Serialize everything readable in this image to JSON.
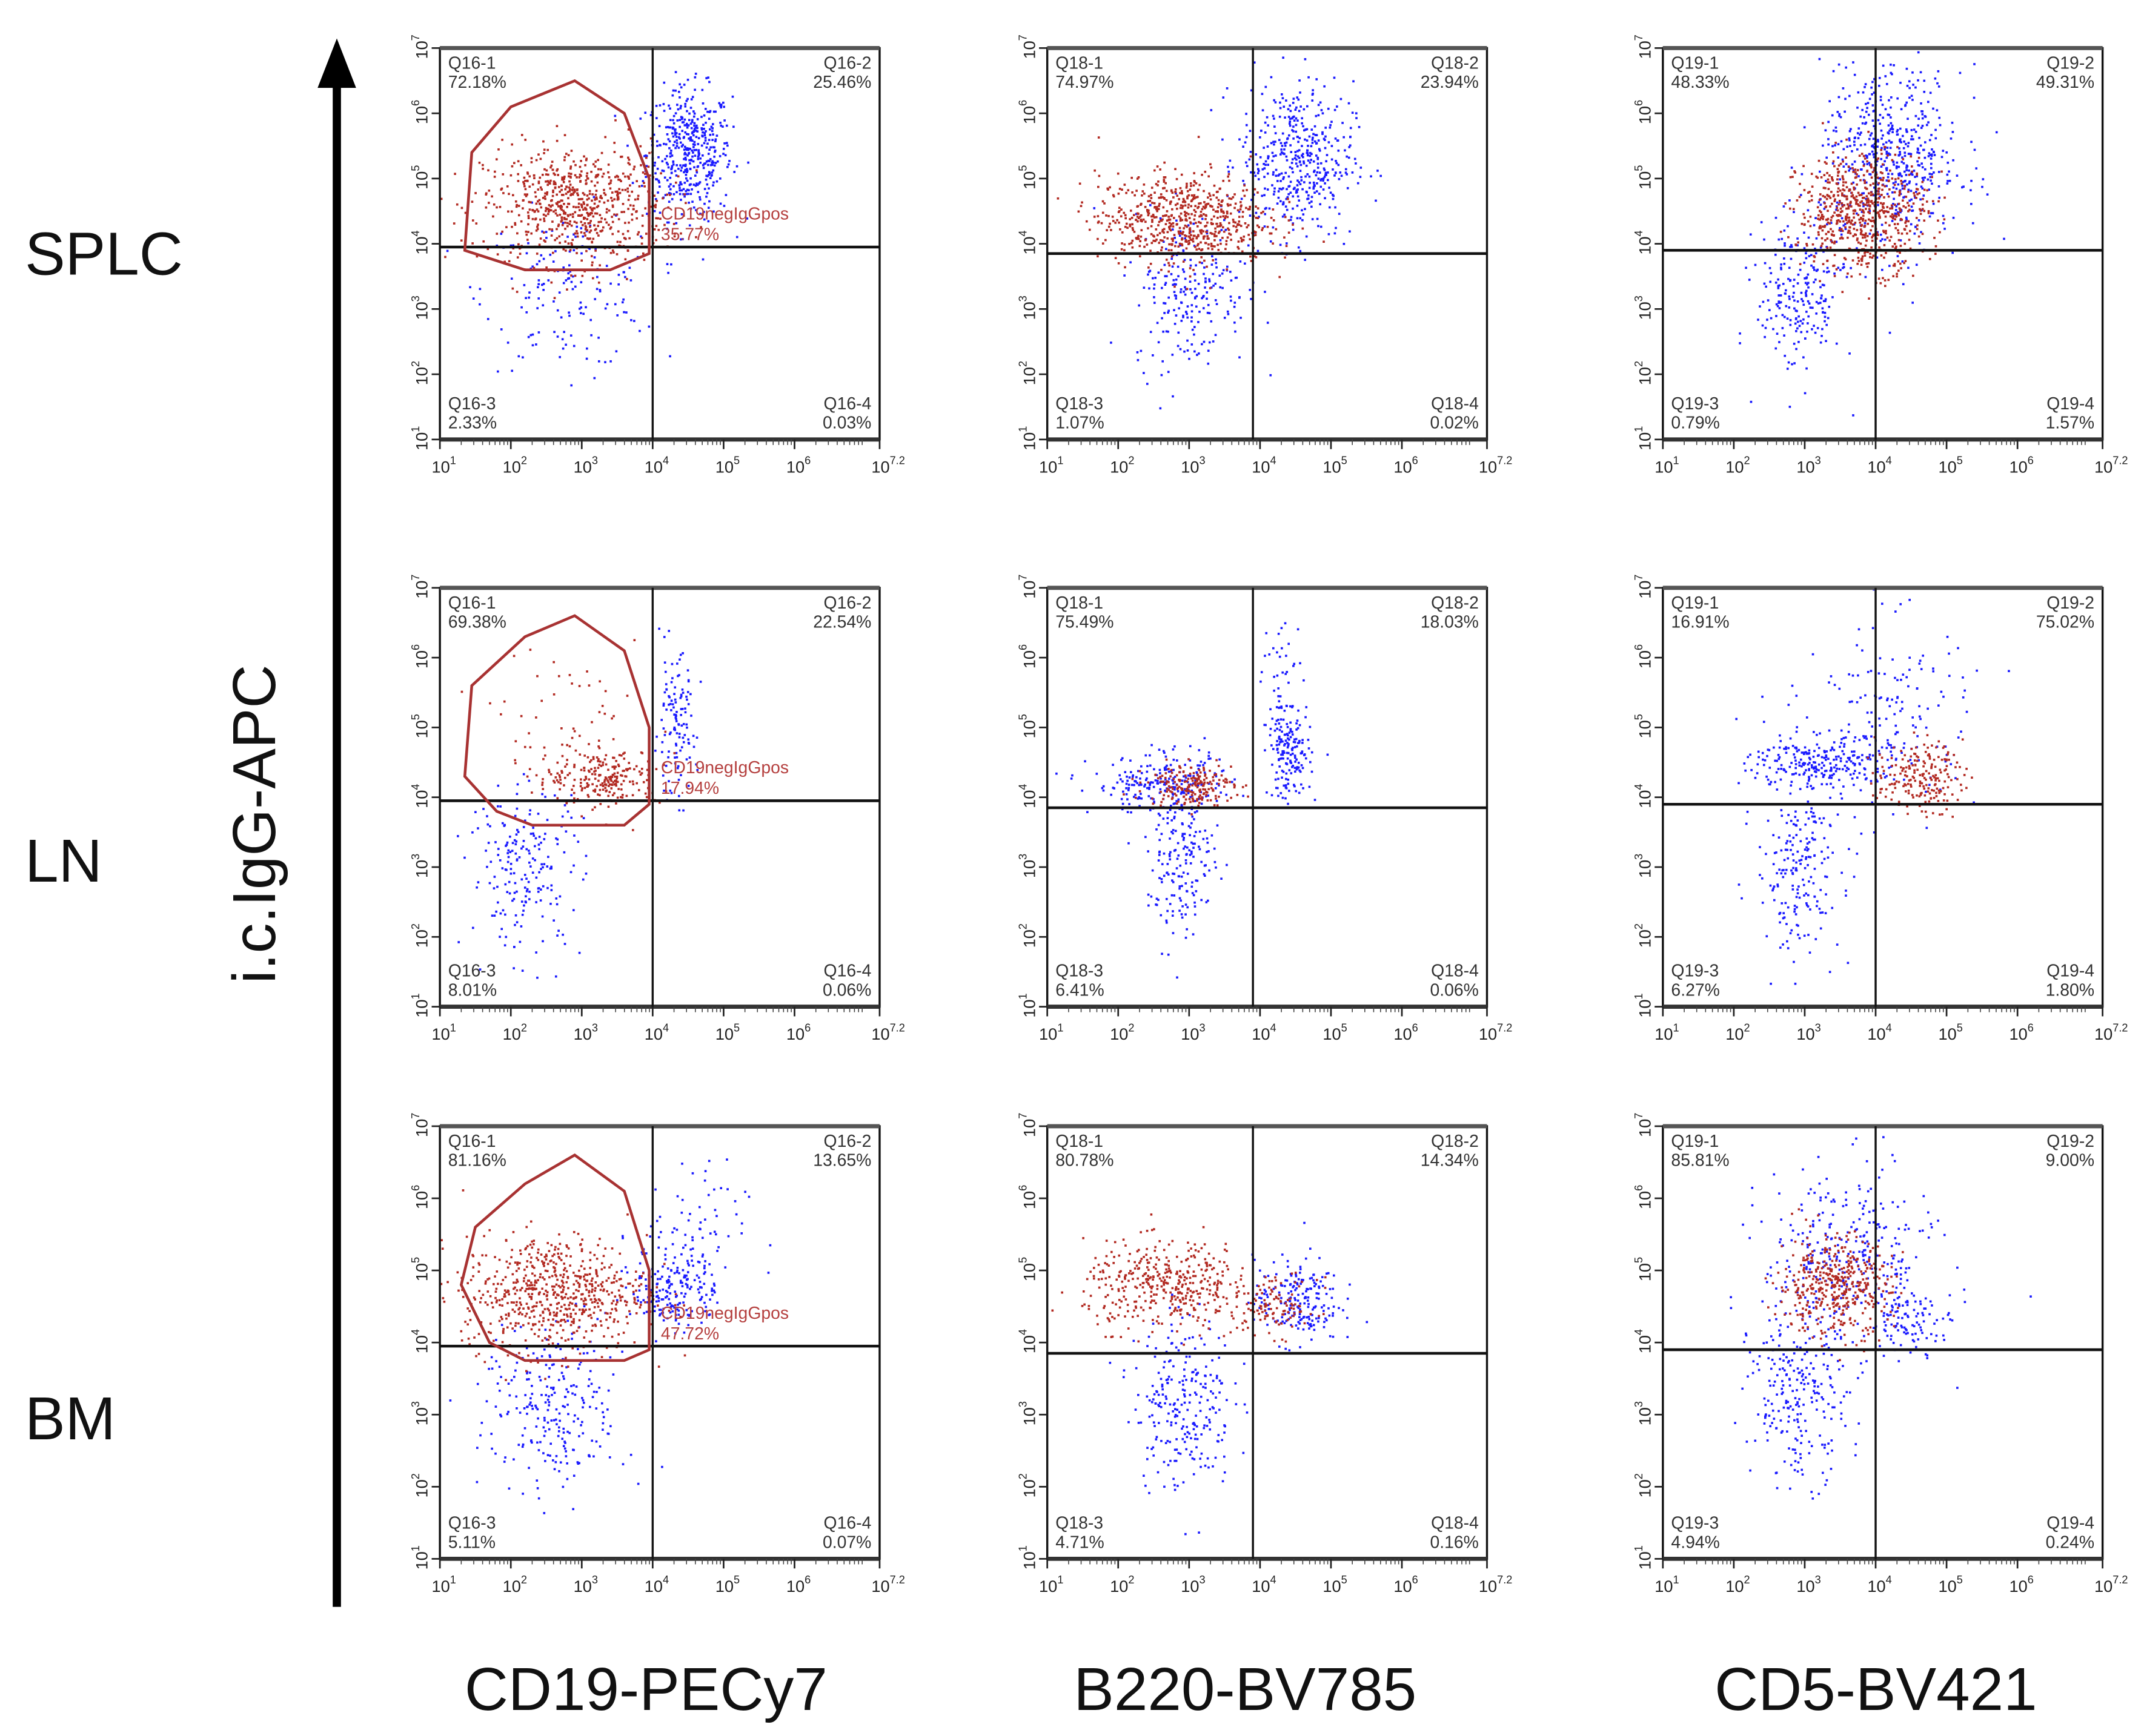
{
  "row_labels": [
    "SPLC",
    "LN",
    "BM"
  ],
  "y_axis_title": "i.c.IgG-APC",
  "column_labels": [
    "CD19-PECy7",
    "B220-BV785",
    "CD5-BV421"
  ],
  "colors": {
    "gated": "#b22a22",
    "ungated": "#1a1aff",
    "gate_outline": "#a83232",
    "axis": "#111111"
  },
  "chart_data": [
    {
      "type": "scatter",
      "row": 0,
      "col": 0,
      "xlabel": "CD19-PECy7",
      "ylabel": "i.c.IgG-APC",
      "x_tick_exponents": [
        "1",
        "2",
        "3",
        "4",
        "5",
        "6",
        "7.2"
      ],
      "y_tick_exponents": [
        "1",
        "2",
        "3",
        "4",
        "5",
        "6",
        "7"
      ],
      "xlim_log10": [
        1,
        7.2
      ],
      "ylim_log10": [
        1,
        7
      ],
      "x_gate_log10": 4.0,
      "y_gate_log10": 3.95,
      "quadrants": [
        {
          "name": "Q16-1",
          "pct": "72.18%"
        },
        {
          "name": "Q16-2",
          "pct": "25.46%"
        },
        {
          "name": "Q16-3",
          "pct": "2.33%"
        },
        {
          "name": "Q16-4",
          "pct": "0.03%"
        }
      ],
      "gate": {
        "label": "CD19negIgGpos",
        "pct": "35.77%",
        "polygon_log10": [
          [
            1.35,
            3.9
          ],
          [
            1.45,
            5.4
          ],
          [
            2.0,
            6.1
          ],
          [
            2.9,
            6.5
          ],
          [
            3.6,
            6.0
          ],
          [
            3.95,
            5.0
          ],
          [
            3.95,
            3.85
          ],
          [
            3.4,
            3.6
          ],
          [
            2.2,
            3.6
          ]
        ]
      },
      "populations": [
        {
          "c": "ungated",
          "x": 4.5,
          "y": 5.4,
          "sx": 0.3,
          "sy": 0.5,
          "n": 450
        },
        {
          "c": "gated",
          "x": 2.9,
          "y": 4.6,
          "sx": 0.65,
          "sy": 0.45,
          "n": 700
        },
        {
          "c": "ungated",
          "x": 2.8,
          "y": 3.3,
          "sx": 0.6,
          "sy": 0.6,
          "n": 160
        }
      ]
    },
    {
      "type": "scatter",
      "row": 0,
      "col": 1,
      "xlabel": "B220-BV785",
      "ylabel": "i.c.IgG-APC",
      "x_tick_exponents": [
        "1",
        "2",
        "3",
        "4",
        "5",
        "6",
        "7.2"
      ],
      "y_tick_exponents": [
        "1",
        "2",
        "3",
        "4",
        "5",
        "6",
        "7"
      ],
      "xlim_log10": [
        1,
        7.2
      ],
      "ylim_log10": [
        1,
        7
      ],
      "x_gate_log10": 3.9,
      "y_gate_log10": 3.85,
      "quadrants": [
        {
          "name": "Q18-1",
          "pct": "74.97%"
        },
        {
          "name": "Q18-2",
          "pct": "23.94%"
        },
        {
          "name": "Q18-3",
          "pct": "1.07%"
        },
        {
          "name": "Q18-4",
          "pct": "0.02%"
        }
      ],
      "populations": [
        {
          "c": "ungated",
          "x": 4.5,
          "y": 5.3,
          "sx": 0.4,
          "sy": 0.6,
          "n": 450
        },
        {
          "c": "ungated",
          "x": 3.0,
          "y": 3.3,
          "sx": 0.4,
          "sy": 0.6,
          "n": 220
        },
        {
          "c": "gated",
          "x": 2.9,
          "y": 4.4,
          "sx": 0.6,
          "sy": 0.35,
          "n": 650
        }
      ]
    },
    {
      "type": "scatter",
      "row": 0,
      "col": 2,
      "xlabel": "CD5-BV421",
      "ylabel": "i.c.IgG-APC",
      "x_tick_exponents": [
        "1",
        "2",
        "3",
        "4",
        "5",
        "6",
        "7.2"
      ],
      "y_tick_exponents": [
        "1",
        "2",
        "3",
        "4",
        "5",
        "6",
        "7"
      ],
      "xlim_log10": [
        1,
        7.2
      ],
      "ylim_log10": [
        1,
        7
      ],
      "x_gate_log10": 4.0,
      "y_gate_log10": 3.9,
      "quadrants": [
        {
          "name": "Q19-1",
          "pct": "48.33%"
        },
        {
          "name": "Q19-2",
          "pct": "49.31%"
        },
        {
          "name": "Q19-3",
          "pct": "0.79%"
        },
        {
          "name": "Q19-4",
          "pct": "1.57%"
        }
      ],
      "populations": [
        {
          "c": "ungated",
          "x": 4.2,
          "y": 5.3,
          "sx": 0.5,
          "sy": 0.7,
          "n": 550
        },
        {
          "c": "ungated",
          "x": 2.9,
          "y": 3.2,
          "sx": 0.3,
          "sy": 0.6,
          "n": 220
        },
        {
          "c": "gated",
          "x": 3.8,
          "y": 4.5,
          "sx": 0.45,
          "sy": 0.45,
          "n": 650
        }
      ]
    },
    {
      "type": "scatter",
      "row": 1,
      "col": 0,
      "xlabel": "CD19-PECy7",
      "ylabel": "i.c.IgG-APC",
      "x_tick_exponents": [
        "1",
        "2",
        "3",
        "4",
        "5",
        "6",
        "7.2"
      ],
      "y_tick_exponents": [
        "1",
        "2",
        "3",
        "4",
        "5",
        "6",
        "7"
      ],
      "xlim_log10": [
        1,
        7.2
      ],
      "ylim_log10": [
        1,
        7
      ],
      "x_gate_log10": 4.0,
      "y_gate_log10": 3.95,
      "quadrants": [
        {
          "name": "Q16-1",
          "pct": "69.38%"
        },
        {
          "name": "Q16-2",
          "pct": "22.54%"
        },
        {
          "name": "Q16-3",
          "pct": "8.01%"
        },
        {
          "name": "Q16-4",
          "pct": "0.06%"
        }
      ],
      "gate": {
        "label": "CD19negIgGpos",
        "pct": "17.94%",
        "polygon_log10": [
          [
            1.35,
            4.3
          ],
          [
            1.45,
            5.6
          ],
          [
            2.2,
            6.3
          ],
          [
            2.9,
            6.6
          ],
          [
            3.6,
            6.1
          ],
          [
            3.95,
            5.0
          ],
          [
            3.95,
            3.9
          ],
          [
            3.6,
            3.6
          ],
          [
            2.3,
            3.6
          ],
          [
            1.8,
            3.8
          ]
        ]
      },
      "populations": [
        {
          "c": "gated",
          "x": 3.3,
          "y": 4.3,
          "sx": 0.4,
          "sy": 0.2,
          "n": 220
        },
        {
          "c": "gated",
          "x": 2.8,
          "y": 5.0,
          "sx": 0.5,
          "sy": 0.6,
          "n": 60
        },
        {
          "c": "ungated",
          "x": 4.3,
          "y": 5.0,
          "sx": 0.15,
          "sy": 0.5,
          "n": 120
        },
        {
          "c": "ungated",
          "x": 2.2,
          "y": 3.0,
          "sx": 0.4,
          "sy": 0.6,
          "n": 200
        }
      ]
    },
    {
      "type": "scatter",
      "row": 1,
      "col": 1,
      "xlabel": "B220-BV785",
      "ylabel": "i.c.IgG-APC",
      "x_tick_exponents": [
        "1",
        "2",
        "3",
        "4",
        "5",
        "6",
        "7.2"
      ],
      "y_tick_exponents": [
        "1",
        "2",
        "3",
        "4",
        "5",
        "6",
        "7"
      ],
      "xlim_log10": [
        1,
        7.2
      ],
      "ylim_log10": [
        1,
        7
      ],
      "x_gate_log10": 3.9,
      "y_gate_log10": 3.85,
      "quadrants": [
        {
          "name": "Q18-1",
          "pct": "75.49%"
        },
        {
          "name": "Q18-2",
          "pct": "18.03%"
        },
        {
          "name": "Q18-3",
          "pct": "6.41%"
        },
        {
          "name": "Q18-4",
          "pct": "0.06%"
        }
      ],
      "populations": [
        {
          "c": "ungated",
          "x": 2.6,
          "y": 4.2,
          "sx": 0.5,
          "sy": 0.2,
          "n": 200
        },
        {
          "c": "ungated",
          "x": 4.4,
          "y": 4.6,
          "sx": 0.15,
          "sy": 0.3,
          "n": 150
        },
        {
          "c": "ungated",
          "x": 4.3,
          "y": 5.5,
          "sx": 0.15,
          "sy": 0.6,
          "n": 60
        },
        {
          "c": "ungated",
          "x": 2.9,
          "y": 3.2,
          "sx": 0.25,
          "sy": 0.6,
          "n": 200
        },
        {
          "c": "gated",
          "x": 3.0,
          "y": 4.2,
          "sx": 0.3,
          "sy": 0.15,
          "n": 200
        }
      ]
    },
    {
      "type": "scatter",
      "row": 1,
      "col": 2,
      "xlabel": "CD5-BV421",
      "ylabel": "i.c.IgG-APC",
      "x_tick_exponents": [
        "1",
        "2",
        "3",
        "4",
        "5",
        "6",
        "7.2"
      ],
      "y_tick_exponents": [
        "1",
        "2",
        "3",
        "4",
        "5",
        "6",
        "7"
      ],
      "xlim_log10": [
        1,
        7.2
      ],
      "ylim_log10": [
        1,
        7
      ],
      "x_gate_log10": 4.0,
      "y_gate_log10": 3.9,
      "quadrants": [
        {
          "name": "Q19-1",
          "pct": "16.91%"
        },
        {
          "name": "Q19-2",
          "pct": "75.02%"
        },
        {
          "name": "Q19-3",
          "pct": "6.27%"
        },
        {
          "name": "Q19-4",
          "pct": "1.80%"
        }
      ],
      "populations": [
        {
          "c": "ungated",
          "x": 3.2,
          "y": 4.5,
          "sx": 0.5,
          "sy": 0.2,
          "n": 250
        },
        {
          "c": "ungated",
          "x": 4.2,
          "y": 5.2,
          "sx": 0.6,
          "sy": 0.7,
          "n": 150
        },
        {
          "c": "ungated",
          "x": 2.9,
          "y": 3.0,
          "sx": 0.3,
          "sy": 0.6,
          "n": 200
        },
        {
          "c": "gated",
          "x": 4.6,
          "y": 4.3,
          "sx": 0.3,
          "sy": 0.25,
          "n": 200
        }
      ]
    },
    {
      "type": "scatter",
      "row": 2,
      "col": 0,
      "xlabel": "CD19-PECy7",
      "ylabel": "i.c.IgG-APC",
      "x_tick_exponents": [
        "1",
        "2",
        "3",
        "4",
        "5",
        "6",
        "7.2"
      ],
      "y_tick_exponents": [
        "1",
        "2",
        "3",
        "4",
        "5",
        "6",
        "7"
      ],
      "xlim_log10": [
        1,
        7.2
      ],
      "ylim_log10": [
        1,
        7
      ],
      "x_gate_log10": 4.0,
      "y_gate_log10": 3.95,
      "quadrants": [
        {
          "name": "Q16-1",
          "pct": "81.16%"
        },
        {
          "name": "Q16-2",
          "pct": "13.65%"
        },
        {
          "name": "Q16-3",
          "pct": "5.11%"
        },
        {
          "name": "Q16-4",
          "pct": "0.07%"
        }
      ],
      "gate": {
        "label": "CD19negIgGpos",
        "pct": "47.72%",
        "polygon_log10": [
          [
            1.3,
            4.8
          ],
          [
            1.5,
            5.6
          ],
          [
            2.2,
            6.2
          ],
          [
            2.9,
            6.6
          ],
          [
            3.6,
            6.1
          ],
          [
            3.95,
            5.0
          ],
          [
            3.95,
            3.9
          ],
          [
            3.6,
            3.75
          ],
          [
            2.2,
            3.75
          ],
          [
            1.7,
            4.0
          ]
        ]
      },
      "populations": [
        {
          "c": "ungated",
          "x": 4.3,
          "y": 4.8,
          "sx": 0.3,
          "sy": 0.3,
          "n": 200
        },
        {
          "c": "ungated",
          "x": 2.6,
          "y": 3.1,
          "sx": 0.5,
          "sy": 0.6,
          "n": 250
        },
        {
          "c": "ungated",
          "x": 4.5,
          "y": 5.5,
          "sx": 0.4,
          "sy": 0.5,
          "n": 60
        },
        {
          "c": "gated",
          "x": 2.6,
          "y": 4.7,
          "sx": 0.65,
          "sy": 0.4,
          "n": 650
        }
      ]
    },
    {
      "type": "scatter",
      "row": 2,
      "col": 1,
      "xlabel": "B220-BV785",
      "ylabel": "i.c.IgG-APC",
      "x_tick_exponents": [
        "1",
        "2",
        "3",
        "4",
        "5",
        "6",
        "7.2"
      ],
      "y_tick_exponents": [
        "1",
        "2",
        "3",
        "4",
        "5",
        "6",
        "7"
      ],
      "xlim_log10": [
        1,
        7.2
      ],
      "ylim_log10": [
        1,
        7
      ],
      "x_gate_log10": 3.9,
      "y_gate_log10": 3.85,
      "quadrants": [
        {
          "name": "Q18-1",
          "pct": "80.78%"
        },
        {
          "name": "Q18-2",
          "pct": "14.34%"
        },
        {
          "name": "Q18-3",
          "pct": "4.71%"
        },
        {
          "name": "Q18-4",
          "pct": "0.16%"
        }
      ],
      "populations": [
        {
          "c": "ungated",
          "x": 4.5,
          "y": 4.6,
          "sx": 0.3,
          "sy": 0.3,
          "n": 200
        },
        {
          "c": "ungated",
          "x": 2.9,
          "y": 3.2,
          "sx": 0.35,
          "sy": 0.6,
          "n": 250
        },
        {
          "c": "gated",
          "x": 2.7,
          "y": 4.8,
          "sx": 0.6,
          "sy": 0.3,
          "n": 420
        },
        {
          "c": "gated",
          "x": 4.2,
          "y": 4.5,
          "sx": 0.3,
          "sy": 0.2,
          "n": 100
        }
      ]
    },
    {
      "type": "scatter",
      "row": 2,
      "col": 2,
      "xlabel": "CD5-BV421",
      "ylabel": "i.c.IgG-APC",
      "x_tick_exponents": [
        "1",
        "2",
        "3",
        "4",
        "5",
        "6",
        "7.2"
      ],
      "y_tick_exponents": [
        "1",
        "2",
        "3",
        "4",
        "5",
        "6",
        "7"
      ],
      "xlim_log10": [
        1,
        7.2
      ],
      "ylim_log10": [
        1,
        7
      ],
      "x_gate_log10": 4.0,
      "y_gate_log10": 3.9,
      "quadrants": [
        {
          "name": "Q19-1",
          "pct": "85.81%"
        },
        {
          "name": "Q19-2",
          "pct": "9.00%"
        },
        {
          "name": "Q19-3",
          "pct": "4.94%"
        },
        {
          "name": "Q19-4",
          "pct": "0.24%"
        }
      ],
      "populations": [
        {
          "c": "ungated",
          "x": 3.6,
          "y": 5.2,
          "sx": 0.6,
          "sy": 0.6,
          "n": 300
        },
        {
          "c": "ungated",
          "x": 2.9,
          "y": 3.3,
          "sx": 0.35,
          "sy": 0.6,
          "n": 250
        },
        {
          "c": "ungated",
          "x": 4.5,
          "y": 4.3,
          "sx": 0.3,
          "sy": 0.2,
          "n": 100
        },
        {
          "c": "gated",
          "x": 3.4,
          "y": 4.8,
          "sx": 0.4,
          "sy": 0.35,
          "n": 420
        }
      ]
    }
  ]
}
